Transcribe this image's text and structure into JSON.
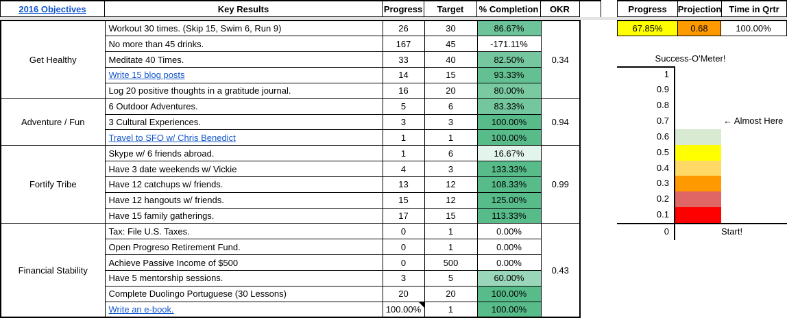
{
  "left_table": {
    "headers": {
      "objectives": "2016 Objectives",
      "key_results": "Key Results",
      "progress": "Progress",
      "target": "Target",
      "completion": "% Completion",
      "okr": "OKR"
    },
    "groups": [
      {
        "objective": "Get Healthy",
        "okr": "0.34",
        "rows": [
          {
            "key_result": "Workout 30 times. (Skip 15, Swim 6, Run 9)",
            "progress": "26",
            "target": "30",
            "completion": "86.67%",
            "completion_bg": "#6DC49A",
            "link": false
          },
          {
            "key_result": "No more than 45 drinks.",
            "progress": "167",
            "target": "45",
            "completion": "-171.11%",
            "completion_bg": "#FFFFFF",
            "link": false
          },
          {
            "key_result": "Meditate 40 Times.",
            "progress": "33",
            "target": "40",
            "completion": "82.50%",
            "completion_bg": "#74C79E",
            "link": false
          },
          {
            "key_result": "Write 15 blog posts",
            "progress": "14",
            "target": "15",
            "completion": "93.33%",
            "completion_bg": "#62C092",
            "link": true
          },
          {
            "key_result": "Log 20 positive thoughts in a gratitude journal.",
            "progress": "16",
            "target": "20",
            "completion": "80.00%",
            "completion_bg": "#79C9A1",
            "link": false
          }
        ]
      },
      {
        "objective": "Adventure / Fun",
        "okr": "0.94",
        "rows": [
          {
            "key_result": "6 Outdoor Adventures.",
            "progress": "5",
            "target": "6",
            "completion": "83.33%",
            "completion_bg": "#73C69E",
            "link": false
          },
          {
            "key_result": "3 Cultural Experiences.",
            "progress": "3",
            "target": "3",
            "completion": "100.00%",
            "completion_bg": "#57BB8A",
            "link": false
          },
          {
            "key_result": "Travel to SFO w/ Chris Benedict",
            "progress": "1",
            "target": "1",
            "completion": "100.00%",
            "completion_bg": "#57BB8A",
            "link": true
          }
        ]
      },
      {
        "objective": "Fortify Tribe",
        "okr": "0.99",
        "rows": [
          {
            "key_result": "Skype w/ 6 friends abroad.",
            "progress": "1",
            "target": "6",
            "completion": "16.67%",
            "completion_bg": "#E3F4EC",
            "link": false
          },
          {
            "key_result": "Have 3 date weekends w/ Vickie",
            "progress": "4",
            "target": "3",
            "completion": "133.33%",
            "completion_bg": "#57BB8A",
            "link": false
          },
          {
            "key_result": "Have 12 catchups w/ friends.",
            "progress": "13",
            "target": "12",
            "completion": "108.33%",
            "completion_bg": "#57BB8A",
            "link": false
          },
          {
            "key_result": "Have 12 hangouts w/ friends.",
            "progress": "15",
            "target": "12",
            "completion": "125.00%",
            "completion_bg": "#57BB8A",
            "link": false
          },
          {
            "key_result": "Have 15 family gatherings.",
            "progress": "17",
            "target": "15",
            "completion": "113.33%",
            "completion_bg": "#57BB8A",
            "link": false
          }
        ]
      },
      {
        "objective": "Financial Stability",
        "okr": "0.43",
        "rows": [
          {
            "key_result": "Tax: File U.S. Taxes.",
            "progress": "0",
            "target": "1",
            "completion": "0.00%",
            "completion_bg": "#FFFFFF",
            "link": false
          },
          {
            "key_result": "Open Progreso Retirement Fund.",
            "progress": "0",
            "target": "1",
            "completion": "0.00%",
            "completion_bg": "#FFFFFF",
            "link": false
          },
          {
            "key_result": "Achieve Passive Income of $500",
            "progress": "0",
            "target": "500",
            "completion": "0.00%",
            "completion_bg": "#FFFFFF",
            "link": false
          },
          {
            "key_result": "Have 5 mentorship sessions.",
            "progress": "3",
            "target": "5",
            "completion": "60.00%",
            "completion_bg": "#9AD6B9",
            "link": false
          },
          {
            "key_result": "Complete Duolingo Portuguese (30 Lessons)",
            "progress": "20",
            "target": "20",
            "completion": "100.00%",
            "completion_bg": "#57BB8A",
            "link": false
          },
          {
            "key_result": "Write an e-book.",
            "progress": "100.00%",
            "target": "1",
            "completion": "100.00%",
            "completion_bg": "#57BB8A",
            "link": true,
            "note": true
          }
        ]
      }
    ]
  },
  "right_panel": {
    "headers": [
      "Progress",
      "Projection",
      "Time in Qrtr"
    ],
    "values": [
      {
        "text": "67.85%",
        "bg": "#FFFF00"
      },
      {
        "text": "0.68",
        "bg": "#FF9900"
      },
      {
        "text": "100.00%",
        "bg": "#FFFFFF"
      }
    ]
  },
  "meter": {
    "title": "Success-O'Meter!",
    "annotation": "← Almost Here",
    "start_label": "Start!",
    "scale": [
      {
        "label": "1",
        "color": null
      },
      {
        "label": "0.9",
        "color": null
      },
      {
        "label": "0.8",
        "color": null
      },
      {
        "label": "0.7",
        "color": null,
        "annotation": true
      },
      {
        "label": "0.6",
        "color": "#D9EAD3"
      },
      {
        "label": "0.5",
        "color": "#FFFF00"
      },
      {
        "label": "0.4",
        "color": "#FFD966"
      },
      {
        "label": "0.3",
        "color": "#FF9900"
      },
      {
        "label": "0.2",
        "color": "#E06666"
      },
      {
        "label": "0.1",
        "color": "#FF0000",
        "baseline_below": true
      },
      {
        "label": "0",
        "color": null,
        "start": true
      }
    ]
  },
  "colors": {
    "link": "#1155cc",
    "completion_full_green": "#57bb8a",
    "frozen_divider": "#e3e3e3"
  }
}
